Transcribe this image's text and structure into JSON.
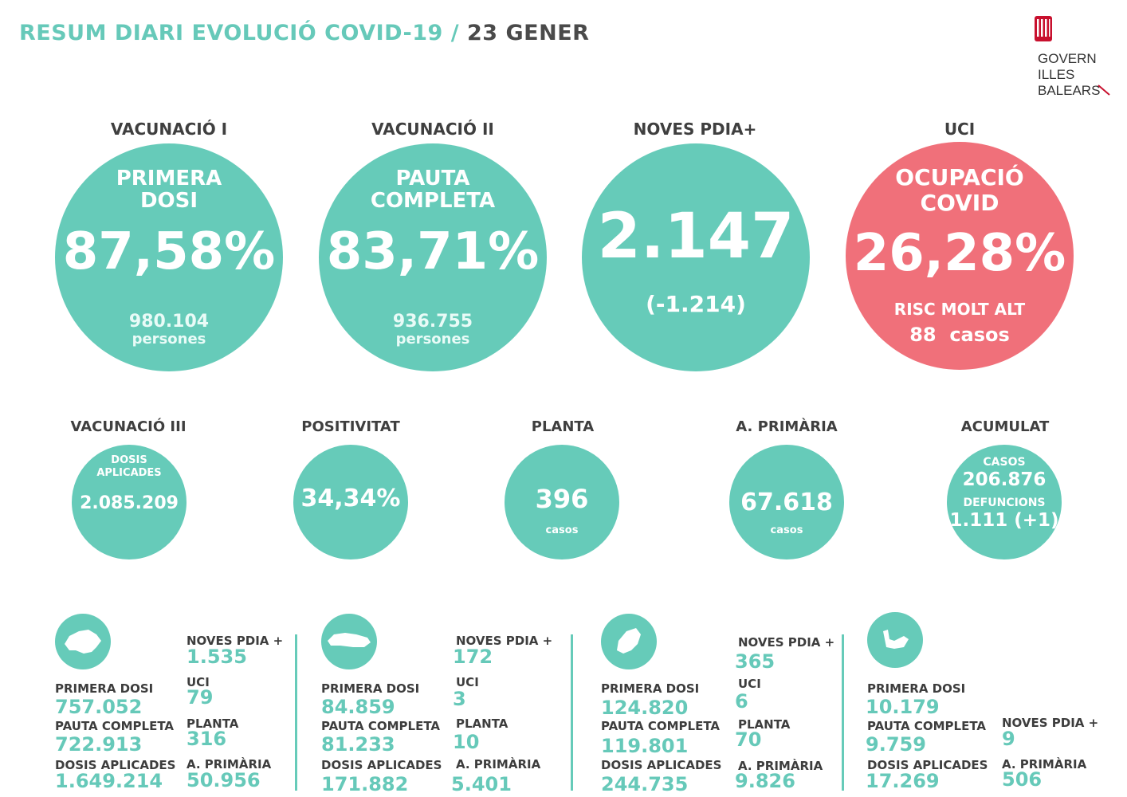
{
  "header": {
    "title": "RESUM DIARI EVOLUCIÓ COVID-19 /",
    "date": "23 GENER"
  },
  "logo": {
    "line1": "GOVERN",
    "line2": "ILLES",
    "line3": "BALEARS",
    "color": "#c8102e"
  },
  "colors": {
    "teal": "#66cbb9",
    "red": "#f0707a",
    "dark": "#3d3d3d"
  },
  "big": {
    "vac1": {
      "label": "VACUNACIÓ I",
      "line1": "PRIMERA",
      "line2": "DOSI",
      "value": "87,58%",
      "count": "980.104",
      "unit": "persones"
    },
    "vac2": {
      "label": "VACUNACIÓ II",
      "line1": "PAUTA",
      "line2": "COMPLETA",
      "value": "83,71%",
      "count": "936.755",
      "unit": "persones"
    },
    "pdia": {
      "label": "NOVES PDIA+",
      "value": "2.147",
      "delta": "(-1.214)"
    },
    "uci": {
      "label": "UCI",
      "line1": "OCUPACIÓ",
      "line2": "COVID",
      "value": "26,28%",
      "risk": "RISC MOLT ALT",
      "cases": "88  casos"
    }
  },
  "small": {
    "vac3": {
      "label": "VACUNACIÓ III",
      "line1": "DOSIS",
      "line2": "APLICADES",
      "value": "2.085.209"
    },
    "pos": {
      "label": "POSITIVITAT",
      "value": "34,34%"
    },
    "planta": {
      "label": "PLANTA",
      "value": "396",
      "unit": "casos"
    },
    "aprim": {
      "label": "A. PRIMÀRIA",
      "value": "67.618",
      "unit": "casos"
    },
    "acum": {
      "label": "ACUMULAT",
      "cases_label": "CASOS",
      "cases": "206.876",
      "deaths_label": "DEFUNCIONS",
      "deaths": "1.111 (+1)"
    }
  },
  "islands": [
    {
      "icon": "mallorca-map-icon",
      "primera_label": "PRIMERA DOSI",
      "primera": "757.052",
      "pauta_label": "PAUTA COMPLETA",
      "pauta": "722.913",
      "dosis_label": "DOSIS APLICADES",
      "dosis": "1.649.214",
      "pdia_label": "NOVES PDIA +",
      "pdia": "1.535",
      "uci_label": "UCI",
      "uci": "79",
      "planta_label": "PLANTA",
      "planta": "316",
      "aprim_label": "A. PRIMÀRIA",
      "aprim": "50.956"
    },
    {
      "icon": "menorca-map-icon",
      "primera_label": "PRIMERA DOSI",
      "primera": "84.859",
      "pauta_label": "PAUTA COMPLETA",
      "pauta": "81.233",
      "dosis_label": "DOSIS APLICADES",
      "dosis": "171.882",
      "pdia_label": "NOVES PDIA +",
      "pdia": "172",
      "uci_label": "UCI",
      "uci": "3",
      "planta_label": "PLANTA",
      "planta": "10",
      "aprim_label": "A. PRIMÀRIA",
      "aprim": "5.401"
    },
    {
      "icon": "eivissa-map-icon",
      "primera_label": "PRIMERA DOSI",
      "primera": "124.820",
      "pauta_label": "PAUTA COMPLETA",
      "pauta": "119.801",
      "dosis_label": "DOSIS APLICADES",
      "dosis": "244.735",
      "pdia_label": "NOVES PDIA +",
      "pdia": "365",
      "uci_label": "UCI",
      "uci": "6",
      "planta_label": "PLANTA",
      "planta": "70",
      "aprim_label": "A. PRIMÀRIA",
      "aprim": "9.826"
    },
    {
      "icon": "formentera-map-icon",
      "primera_label": "PRIMERA DOSI",
      "primera": "10.179",
      "pauta_label": "PAUTA COMPLETA",
      "pauta": "9.759",
      "dosis_label": "DOSIS APLICADES",
      "dosis": "17.269",
      "pdia_label": "NOVES PDIA +",
      "pdia": "9",
      "aprim_label": "A. PRIMÀRIA",
      "aprim": "506"
    }
  ]
}
